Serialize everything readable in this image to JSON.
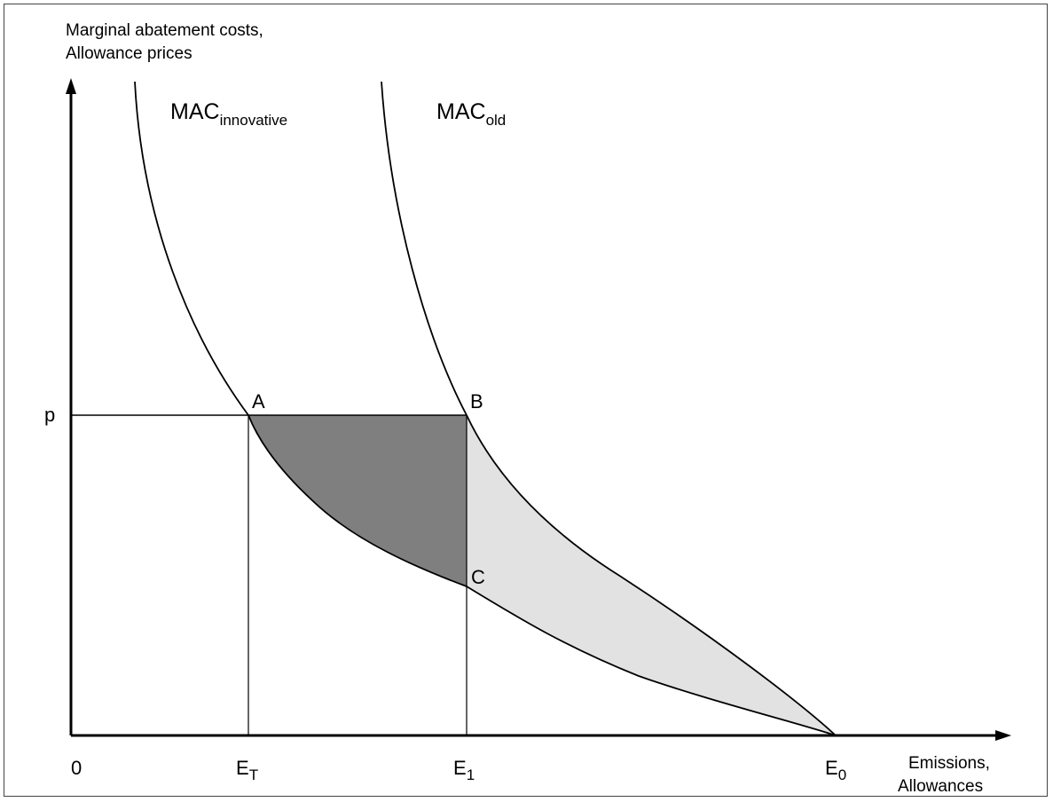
{
  "diagram": {
    "y_axis_title": {
      "line1": "Marginal abatement costs,",
      "line2": "Allowance prices"
    },
    "x_axis_title": {
      "line1": "Emissions,",
      "line2": "Allowances"
    },
    "curves": {
      "innovative": {
        "main": "MAC",
        "sub": "innovative"
      },
      "old": {
        "main": "MAC",
        "sub": "old"
      }
    },
    "price_label": "p",
    "origin_label": "0",
    "x_ticks": {
      "et": {
        "main": "E",
        "sub": "T"
      },
      "e1": {
        "main": "E",
        "sub": "1"
      },
      "e0": {
        "main": "E",
        "sub": "0"
      }
    },
    "points": {
      "a": "A",
      "b": "B",
      "c": "C"
    },
    "colors": {
      "dark_area": "#7f7f7f",
      "light_area": "#e2e2e2",
      "lines": "#000000"
    }
  }
}
